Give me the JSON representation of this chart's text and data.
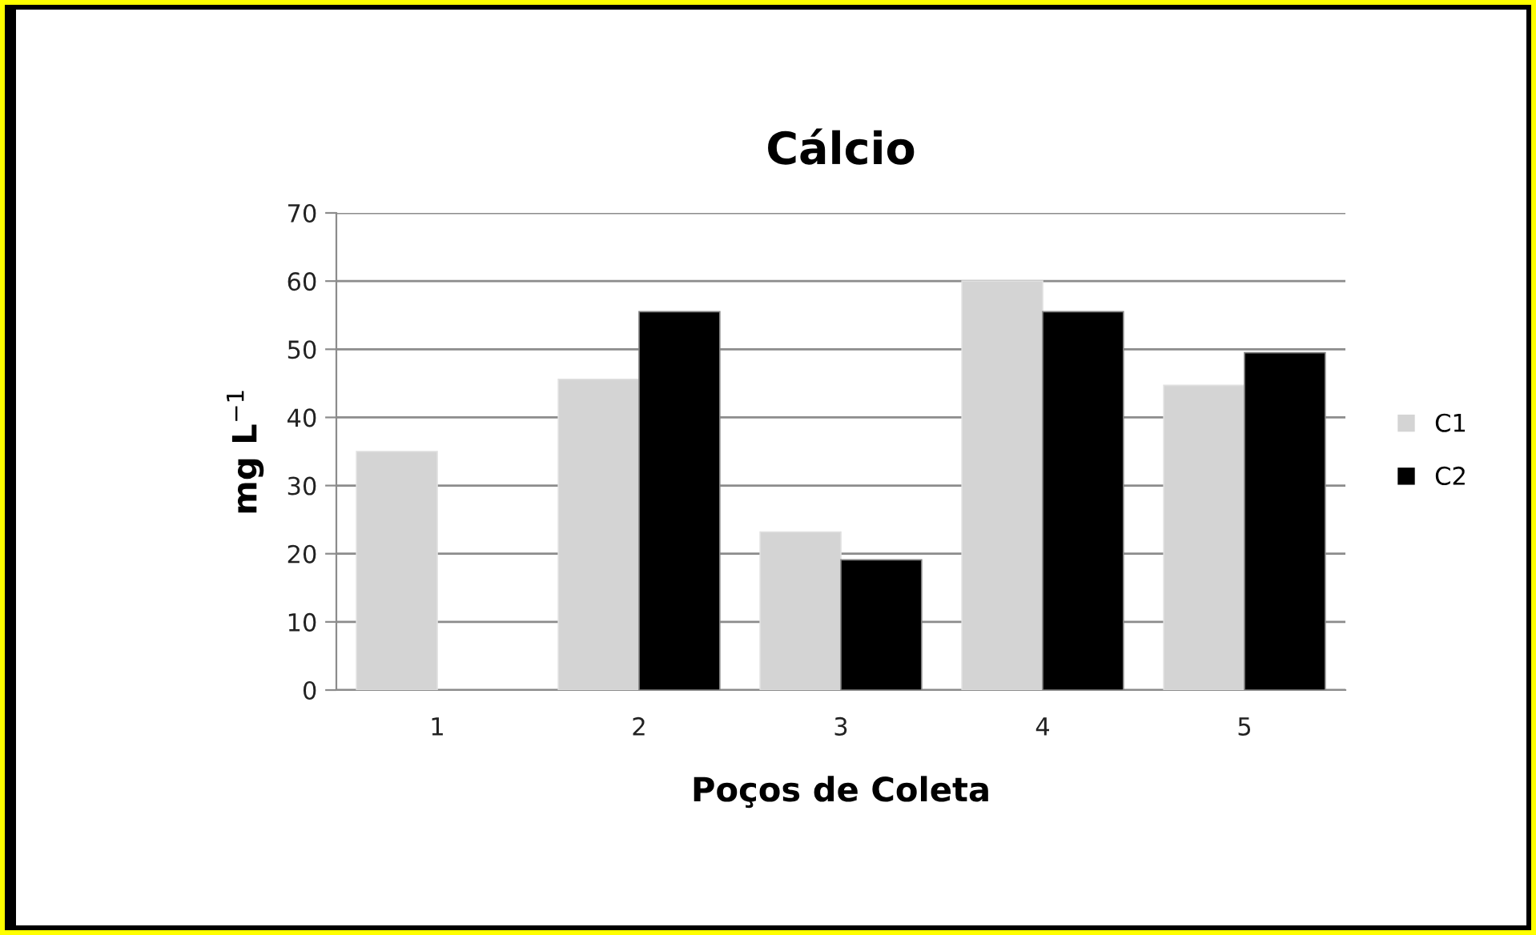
{
  "chart_data": {
    "type": "bar",
    "title": "Cálcio",
    "xlabel": "Poços de Coleta",
    "ylabel": "mg L$^{−1}$",
    "categories": [
      "1",
      "2",
      "3",
      "4",
      "5"
    ],
    "series": [
      {
        "name": "C1",
        "color": "#d4d4d4",
        "values": [
          35,
          45.6,
          23.2,
          60,
          44.7
        ]
      },
      {
        "name": "C2",
        "color": "#000000",
        "values": [
          null,
          55.5,
          19.1,
          55.5,
          49.5
        ]
      }
    ],
    "ylim": [
      0,
      70
    ],
    "yticks": [
      0,
      10,
      20,
      30,
      40,
      50,
      60,
      70
    ],
    "grid": "y",
    "legend": "right"
  }
}
